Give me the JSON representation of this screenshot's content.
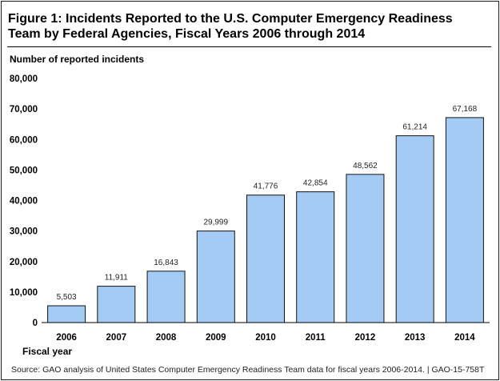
{
  "figure": {
    "title": "Figure 1: Incidents Reported to the U.S. Computer Emergency Readiness Team by Federal Agencies, Fiscal Years 2006 through 2014",
    "source": "Source: GAO analysis of United States Computer Emergency Readiness Team data for fiscal years 2006-2014.  |  GAO-15-758T"
  },
  "chart_data": {
    "type": "bar",
    "title": "Incidents Reported to the U.S. Computer Emergency Readiness Team by Federal Agencies, Fiscal Years 2006 through 2014",
    "ylabel": "Number of reported incidents",
    "xlabel": "Fiscal year",
    "categories": [
      "2006",
      "2007",
      "2008",
      "2009",
      "2010",
      "2011",
      "2012",
      "2013",
      "2014"
    ],
    "values": [
      5503,
      11911,
      16843,
      29999,
      41776,
      42854,
      48562,
      61214,
      67168
    ],
    "data_labels": [
      "5,503",
      "11,911",
      "16,843",
      "29,999",
      "41,776",
      "42,854",
      "48,562",
      "61,214",
      "67,168"
    ],
    "ylim": [
      0,
      80000
    ],
    "yticks": [
      0,
      10000,
      20000,
      30000,
      40000,
      50000,
      60000,
      70000,
      80000
    ],
    "ytick_labels": [
      "0",
      "10,000",
      "20,000",
      "30,000",
      "40,000",
      "50,000",
      "60,000",
      "70,000",
      "80,000"
    ],
    "bar_color": "#a3cbf4",
    "grid": false
  }
}
